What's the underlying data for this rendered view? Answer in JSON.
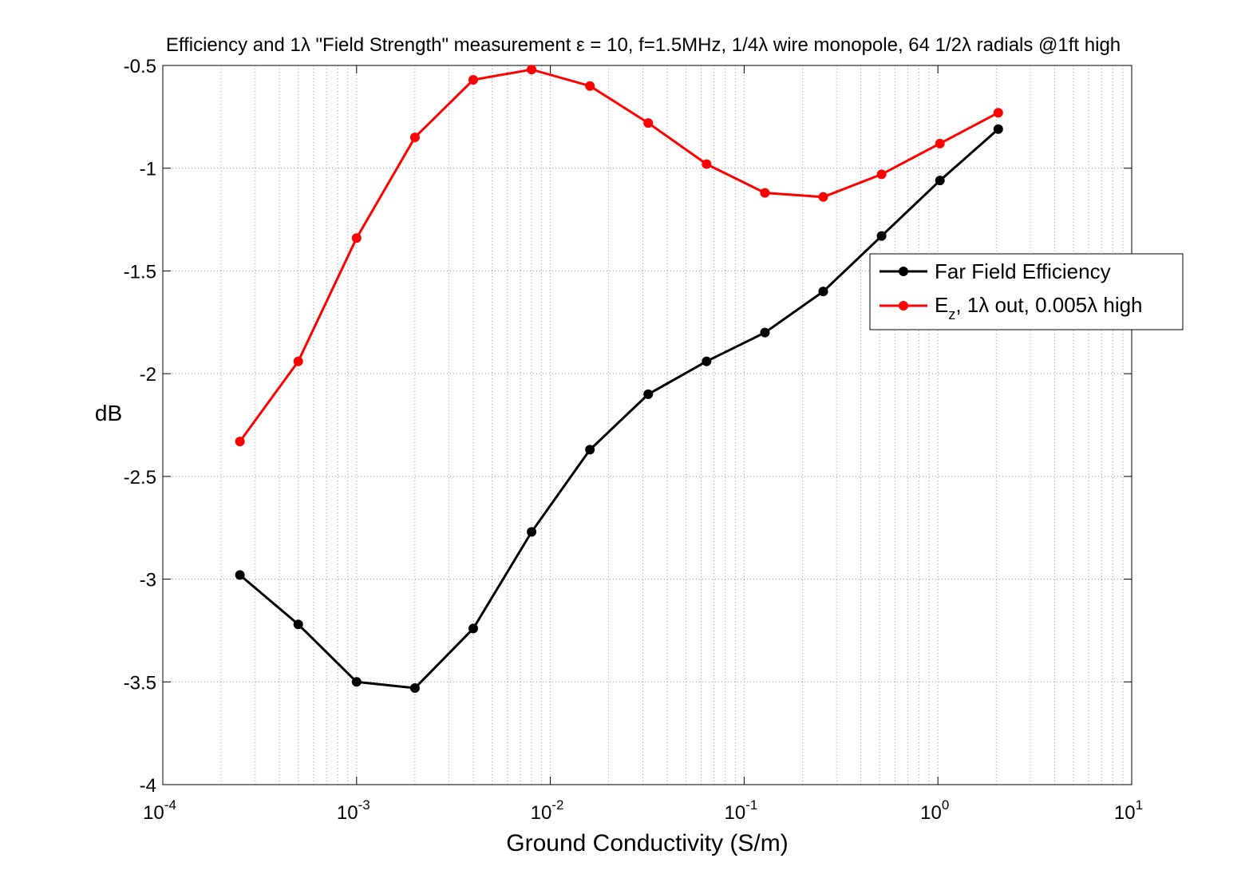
{
  "chart_data": {
    "type": "line",
    "title": "Efficiency and 1λ \"Field Strength\" measurement ε = 10, f=1.5MHz, 1/4λ wire monopole, 64 1/2λ radials @1ft high",
    "xlabel": "Ground Conductivity (S/m)",
    "ylabel": "dB",
    "xscale": "log",
    "xlim": [
      0.0001,
      10
    ],
    "ylim": [
      -4,
      -0.5
    ],
    "grid": true,
    "legend_position": "right",
    "x_ticks": [
      {
        "base": "10",
        "exp": "-4"
      },
      {
        "base": "10",
        "exp": "-3"
      },
      {
        "base": "10",
        "exp": "-2"
      },
      {
        "base": "10",
        "exp": "-1"
      },
      {
        "base": "10",
        "exp": "0"
      },
      {
        "base": "10",
        "exp": "1"
      }
    ],
    "y_ticks": [
      "-0.5",
      "-1",
      "-1.5",
      "-2",
      "-2.5",
      "-3",
      "-3.5",
      "-4"
    ],
    "x": [
      0.00025,
      0.0005,
      0.001,
      0.002,
      0.004,
      0.008,
      0.016,
      0.032,
      0.064,
      0.128,
      0.256,
      0.512,
      1.024,
      2.048
    ],
    "series": [
      {
        "name": "Far Field Efficiency",
        "legend_main": "Far Field Efficiency",
        "color": "#000000",
        "values": [
          -2.98,
          -3.22,
          -3.5,
          -3.53,
          -3.24,
          -2.77,
          -2.37,
          -2.1,
          -1.94,
          -1.8,
          -1.6,
          -1.33,
          -1.06,
          -0.81
        ]
      },
      {
        "name": "Ez, 1λ out, 0.005λ high",
        "legend_main": "E",
        "legend_sub": "z",
        "legend_rest": ", 1λ out, 0.005λ high",
        "color": "#ff0000",
        "values": [
          -2.33,
          -1.94,
          -1.34,
          -0.85,
          -0.57,
          -0.52,
          -0.6,
          -0.78,
          -0.98,
          -1.12,
          -1.14,
          -1.03,
          -0.88,
          -0.73
        ]
      }
    ]
  }
}
